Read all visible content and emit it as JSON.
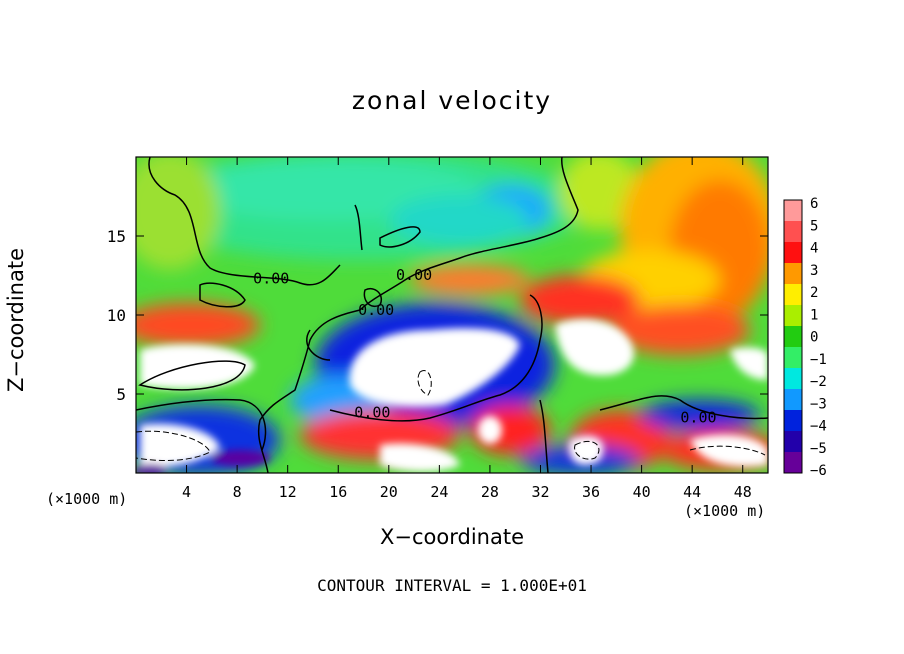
{
  "title": "zonal velocity",
  "footer": "CONTOUR INTERVAL = 1.000E+01",
  "chart_data": {
    "type": "heatmap",
    "title": "zonal velocity",
    "xlabel": "X−coordinate",
    "ylabel": "Z−coordinate",
    "xunit_left": "(×1000 m)",
    "xunit_right": "(×1000 m)",
    "xlim": [
      0,
      50
    ],
    "ylim": [
      0,
      20
    ],
    "xticks": [
      4,
      8,
      12,
      16,
      20,
      24,
      28,
      32,
      36,
      40,
      44,
      48
    ],
    "xtick_labels": [
      "4",
      "8",
      "12",
      "16",
      "20",
      "24",
      "28",
      "32",
      "36",
      "40",
      "44",
      "48"
    ],
    "yticks": [
      5,
      10,
      15
    ],
    "ytick_labels": [
      "5",
      "10",
      "15"
    ],
    "colorbar": {
      "levels": [
        6,
        5,
        4,
        3,
        2,
        1,
        0,
        -1,
        -2,
        -3,
        -4,
        -5,
        -6
      ],
      "labels": [
        "6",
        "5",
        "4",
        "3",
        "2",
        "1",
        "0",
        "−1",
        "−2",
        "−3",
        "−4",
        "−5",
        "−6"
      ],
      "colors": [
        "#ff9a9a",
        "#ff5050",
        "#ff1010",
        "#ff9900",
        "#ffee00",
        "#aaee00",
        "#22cc11",
        "#33ee66",
        "#00e8e0",
        "#1199ff",
        "#0022dd",
        "#2200aa",
        "#660099"
      ]
    },
    "contour_labels": [
      {
        "text": "0.00",
        "x": 10.7,
        "y": 12.0
      },
      {
        "text": "0.00",
        "x": 22.0,
        "y": 12.2
      },
      {
        "text": "0.00",
        "x": 19.0,
        "y": 10.0
      },
      {
        "text": "0.00",
        "x": 18.7,
        "y": 3.5
      },
      {
        "text": "0.00",
        "x": 44.5,
        "y": 3.2
      }
    ],
    "contour_interval": "1.000E+01"
  }
}
